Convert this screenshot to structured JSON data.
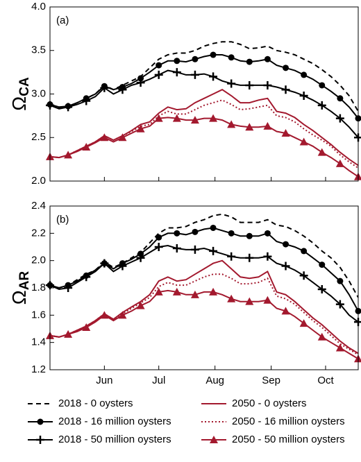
{
  "chart_data": [
    {
      "type": "line",
      "panel_label": "(a)",
      "ylabel": "Ω",
      "ylabel_subscript": "CA",
      "x": [
        122,
        127,
        132,
        137,
        142,
        147,
        152,
        157,
        162,
        167,
        172,
        177,
        182,
        187,
        192,
        197,
        202,
        207,
        212,
        217,
        222,
        227,
        232,
        237,
        242,
        247,
        252,
        257,
        262,
        267,
        272,
        277,
        282,
        287,
        292
      ],
      "xlim": [
        122,
        292
      ],
      "xticks": [
        152,
        182,
        213,
        244,
        274
      ],
      "ylim": [
        2,
        4
      ],
      "yticks": [
        {
          "value": 2,
          "label": "2.0"
        },
        2.5,
        {
          "value": 3,
          "label": "3.0"
        },
        3.5,
        {
          "value": 4,
          "label": "4.0"
        }
      ],
      "series": [
        {
          "color": "#000000",
          "dash": "dashed",
          "values": [
            2.87,
            2.84,
            2.85,
            2.9,
            2.95,
            3.0,
            3.1,
            3.05,
            3.1,
            3.15,
            3.2,
            3.3,
            3.4,
            3.45,
            3.47,
            3.47,
            3.5,
            3.55,
            3.58,
            3.6,
            3.6,
            3.57,
            3.52,
            3.53,
            3.55,
            3.5,
            3.48,
            3.45,
            3.4,
            3.35,
            3.28,
            3.2,
            3.1,
            2.98,
            2.8
          ]
        },
        {
          "color": "#000000",
          "dash": "solid",
          "marker": "circle",
          "values": [
            2.88,
            2.85,
            2.86,
            2.9,
            2.95,
            3.0,
            3.09,
            3.05,
            3.08,
            3.12,
            3.18,
            3.25,
            3.33,
            3.38,
            3.38,
            3.37,
            3.4,
            3.43,
            3.45,
            3.45,
            3.42,
            3.38,
            3.37,
            3.38,
            3.4,
            3.33,
            3.3,
            3.27,
            3.22,
            3.17,
            3.1,
            3.03,
            2.95,
            2.85,
            2.72
          ]
        },
        {
          "color": "#000000",
          "dash": "solid",
          "marker": "plus",
          "values": [
            2.87,
            2.83,
            2.85,
            2.88,
            2.92,
            2.97,
            3.07,
            3.0,
            3.05,
            3.1,
            3.13,
            3.17,
            3.22,
            3.27,
            3.25,
            3.22,
            3.22,
            3.23,
            3.2,
            3.15,
            3.12,
            3.1,
            3.1,
            3.1,
            3.1,
            3.08,
            3.05,
            3.02,
            2.98,
            2.93,
            2.87,
            2.8,
            2.72,
            2.62,
            2.5
          ]
        },
        {
          "color": "#a3192e",
          "dash": "solid",
          "values": [
            2.28,
            2.27,
            2.3,
            2.35,
            2.4,
            2.45,
            2.52,
            2.47,
            2.52,
            2.58,
            2.65,
            2.68,
            2.78,
            2.85,
            2.82,
            2.83,
            2.9,
            2.95,
            3.0,
            3.05,
            2.98,
            2.9,
            2.9,
            2.93,
            2.95,
            2.8,
            2.78,
            2.73,
            2.65,
            2.58,
            2.5,
            2.42,
            2.33,
            2.25,
            2.18
          ]
        },
        {
          "color": "#a3192e",
          "dash": "dotted",
          "values": [
            2.28,
            2.27,
            2.3,
            2.35,
            2.4,
            2.45,
            2.52,
            2.47,
            2.52,
            2.57,
            2.63,
            2.65,
            2.75,
            2.8,
            2.77,
            2.77,
            2.82,
            2.87,
            2.9,
            2.93,
            2.88,
            2.82,
            2.83,
            2.85,
            2.87,
            2.75,
            2.73,
            2.68,
            2.6,
            2.53,
            2.47,
            2.4,
            2.3,
            2.22,
            2.15
          ]
        },
        {
          "color": "#a3192e",
          "dash": "solid",
          "marker": "triangle",
          "values": [
            2.28,
            2.27,
            2.3,
            2.34,
            2.39,
            2.44,
            2.5,
            2.45,
            2.5,
            2.55,
            2.6,
            2.63,
            2.72,
            2.73,
            2.72,
            2.7,
            2.7,
            2.72,
            2.72,
            2.7,
            2.65,
            2.63,
            2.62,
            2.62,
            2.63,
            2.57,
            2.55,
            2.5,
            2.45,
            2.4,
            2.33,
            2.27,
            2.2,
            2.12,
            2.05
          ]
        }
      ]
    },
    {
      "type": "line",
      "panel_label": "(b)",
      "ylabel": "Ω",
      "ylabel_subscript": "AR",
      "x": [
        122,
        127,
        132,
        137,
        142,
        147,
        152,
        157,
        162,
        167,
        172,
        177,
        182,
        187,
        192,
        197,
        202,
        207,
        212,
        217,
        222,
        227,
        232,
        237,
        242,
        247,
        252,
        257,
        262,
        267,
        272,
        277,
        282,
        287,
        292
      ],
      "xlim": [
        122,
        292
      ],
      "xticks": [
        {
          "value": 152,
          "label": "Jun"
        },
        {
          "value": 182,
          "label": "Jul"
        },
        {
          "value": 213,
          "label": "Aug"
        },
        {
          "value": 244,
          "label": "Sep"
        },
        {
          "value": 274,
          "label": "Oct"
        }
      ],
      "ylim": [
        1.2,
        2.4
      ],
      "yticks": [
        1.2,
        1.4,
        1.6,
        1.8,
        {
          "value": 2,
          "label": "2.0"
        },
        2.2,
        2.4
      ],
      "series": [
        {
          "name": "2018 - 0 oysters",
          "color": "#000000",
          "dash": "dashed",
          "values": [
            1.82,
            1.8,
            1.82,
            1.86,
            1.9,
            1.93,
            1.99,
            1.95,
            1.98,
            2.02,
            2.06,
            2.13,
            2.2,
            2.24,
            2.24,
            2.25,
            2.28,
            2.3,
            2.33,
            2.34,
            2.32,
            2.28,
            2.28,
            2.28,
            2.3,
            2.26,
            2.25,
            2.22,
            2.18,
            2.13,
            2.07,
            2.02,
            1.95,
            1.85,
            1.73
          ]
        },
        {
          "name": "2018 - 16 million oysters",
          "color": "#000000",
          "dash": "solid",
          "marker": "circle",
          "values": [
            1.82,
            1.8,
            1.82,
            1.85,
            1.89,
            1.93,
            1.98,
            1.94,
            1.98,
            2.01,
            2.05,
            2.1,
            2.17,
            2.2,
            2.2,
            2.19,
            2.21,
            2.23,
            2.24,
            2.22,
            2.2,
            2.18,
            2.18,
            2.18,
            2.2,
            2.14,
            2.12,
            2.1,
            2.07,
            2.02,
            1.97,
            1.91,
            1.85,
            1.75,
            1.63
          ]
        },
        {
          "name": "2018 - 50 million oysters",
          "color": "#000000",
          "dash": "solid",
          "marker": "plus",
          "values": [
            1.82,
            1.79,
            1.8,
            1.84,
            1.88,
            1.92,
            1.98,
            1.92,
            1.96,
            1.99,
            2.02,
            2.06,
            2.1,
            2.11,
            2.09,
            2.08,
            2.08,
            2.09,
            2.07,
            2.05,
            2.03,
            2.02,
            2.02,
            2.02,
            2.03,
            1.98,
            1.96,
            1.93,
            1.89,
            1.84,
            1.79,
            1.74,
            1.68,
            1.6,
            1.55
          ]
        },
        {
          "name": "2050 - 0 oysters",
          "color": "#a3192e",
          "dash": "solid",
          "values": [
            1.45,
            1.44,
            1.46,
            1.49,
            1.52,
            1.56,
            1.61,
            1.57,
            1.62,
            1.66,
            1.7,
            1.75,
            1.85,
            1.88,
            1.85,
            1.86,
            1.9,
            1.94,
            1.98,
            2.0,
            1.94,
            1.88,
            1.87,
            1.88,
            1.92,
            1.77,
            1.75,
            1.7,
            1.64,
            1.58,
            1.53,
            1.47,
            1.41,
            1.36,
            1.32
          ]
        },
        {
          "name": "2050 - 16 million oysters",
          "color": "#a3192e",
          "dash": "dotted",
          "values": [
            1.45,
            1.44,
            1.46,
            1.49,
            1.52,
            1.56,
            1.61,
            1.57,
            1.61,
            1.65,
            1.69,
            1.73,
            1.81,
            1.84,
            1.82,
            1.82,
            1.85,
            1.88,
            1.9,
            1.9,
            1.87,
            1.83,
            1.83,
            1.84,
            1.87,
            1.74,
            1.72,
            1.68,
            1.62,
            1.56,
            1.51,
            1.45,
            1.39,
            1.35,
            1.31
          ]
        },
        {
          "name": "2050 - 50 million oysters",
          "color": "#a3192e",
          "dash": "solid",
          "marker": "triangle",
          "values": [
            1.45,
            1.44,
            1.46,
            1.48,
            1.51,
            1.55,
            1.6,
            1.56,
            1.6,
            1.63,
            1.67,
            1.7,
            1.77,
            1.78,
            1.77,
            1.75,
            1.75,
            1.77,
            1.77,
            1.75,
            1.72,
            1.7,
            1.7,
            1.7,
            1.71,
            1.65,
            1.63,
            1.59,
            1.54,
            1.49,
            1.44,
            1.4,
            1.36,
            1.32,
            1.28
          ]
        }
      ]
    }
  ]
}
